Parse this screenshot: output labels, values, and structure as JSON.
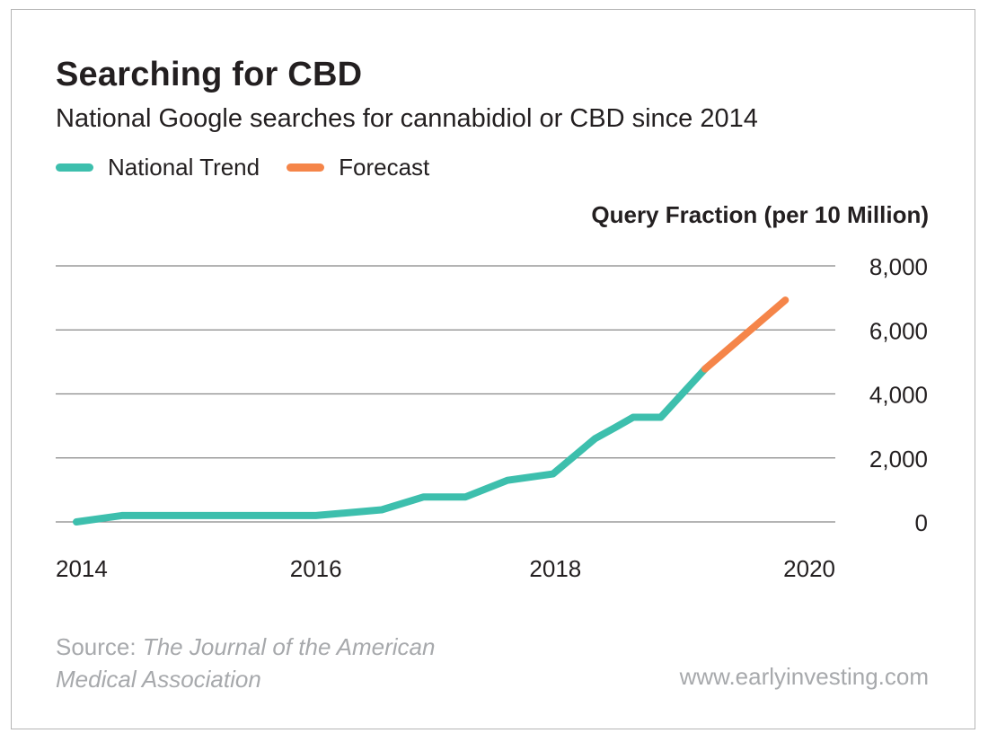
{
  "title": "Searching for CBD",
  "subtitle": "National Google searches for cannabidiol or CBD since 2014",
  "legend": [
    {
      "label": "National Trend",
      "color": "#3dbfad"
    },
    {
      "label": "Forecast",
      "color": "#f58549"
    }
  ],
  "footer": {
    "source_prefix": "Source: ",
    "source_title": "The Journal of the American Medical Association",
    "website": "www.earlyinvesting.com"
  },
  "colors": {
    "grid": "#888888",
    "axis_text": "#231f20",
    "footer_text": "#a7a9ac"
  },
  "chart_data": {
    "type": "line",
    "title": "Searching for CBD",
    "subtitle": "National Google searches for cannabidiol or CBD since 2014",
    "xlabel": "",
    "ylabel": "Query Fraction (per 10 Million)",
    "xlim": [
      2014,
      2020
    ],
    "ylim": [
      0,
      8000
    ],
    "x_ticks": [
      "2014",
      "2016",
      "2018",
      "2020"
    ],
    "y_ticks": [
      "0",
      "2,000",
      "4,000",
      "6,000",
      "8,000"
    ],
    "y_tick_values": [
      0,
      2000,
      4000,
      6000,
      8000
    ],
    "x_tick_values": [
      2014,
      2016,
      2018,
      2020
    ],
    "grid": true,
    "legend_position": "top-left",
    "series": [
      {
        "name": "National Trend",
        "color": "#3dbfad",
        "x": [
          2014.0,
          2014.38,
          2016.0,
          2016.55,
          2016.9,
          2017.25,
          2017.6,
          2017.98,
          2018.33,
          2018.5,
          2018.65,
          2018.88,
          2019.25
        ],
        "y": [
          0,
          200,
          200,
          380,
          780,
          780,
          1300,
          1500,
          2600,
          2950,
          3270,
          3270,
          4780
        ]
      },
      {
        "name": "Forecast",
        "color": "#f58549",
        "x": [
          2019.25,
          2019.92
        ],
        "y": [
          4780,
          6930
        ]
      }
    ]
  }
}
